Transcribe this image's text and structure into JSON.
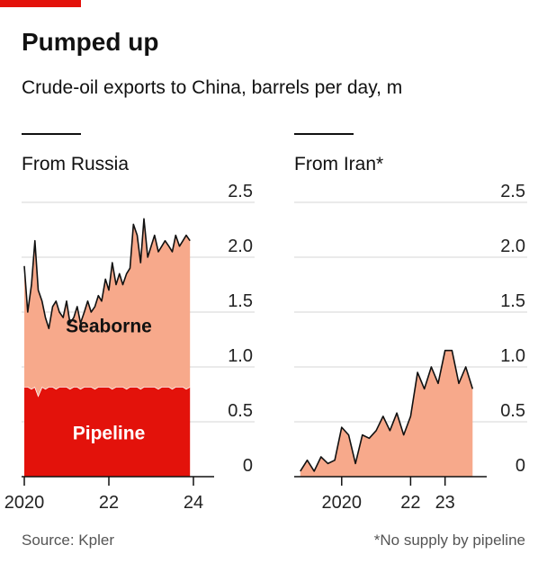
{
  "title": "Pumped up",
  "subtitle": "Crude-oil exports to China, barrels per day, m",
  "source": "Source: Kpler",
  "footnote": "*No supply by pipeline",
  "chart_data": [
    {
      "type": "stacked_area",
      "title": "From Russia",
      "x": [
        2020,
        2020.08,
        2020.17,
        2020.25,
        2020.33,
        2020.42,
        2020.5,
        2020.58,
        2020.67,
        2020.75,
        2020.83,
        2020.92,
        2021,
        2021.08,
        2021.17,
        2021.25,
        2021.33,
        2021.42,
        2021.5,
        2021.58,
        2021.67,
        2021.75,
        2021.83,
        2021.92,
        2022,
        2022.08,
        2022.17,
        2022.25,
        2022.33,
        2022.42,
        2022.5,
        2022.58,
        2022.67,
        2022.75,
        2022.83,
        2022.92,
        2023,
        2023.08,
        2023.17,
        2023.25,
        2023.33,
        2023.42,
        2023.5,
        2023.58,
        2023.67,
        2023.75,
        2023.83,
        2023.92
      ],
      "series": [
        {
          "name": "Pipeline",
          "color": "#e3120b",
          "values": [
            0.82,
            0.82,
            0.8,
            0.82,
            0.74,
            0.82,
            0.8,
            0.82,
            0.82,
            0.8,
            0.82,
            0.82,
            0.82,
            0.8,
            0.82,
            0.82,
            0.8,
            0.82,
            0.82,
            0.82,
            0.8,
            0.82,
            0.82,
            0.82,
            0.82,
            0.8,
            0.82,
            0.82,
            0.82,
            0.8,
            0.82,
            0.82,
            0.82,
            0.8,
            0.82,
            0.82,
            0.82,
            0.82,
            0.8,
            0.82,
            0.82,
            0.82,
            0.8,
            0.82,
            0.82,
            0.82,
            0.8,
            0.82
          ]
        },
        {
          "name": "Seaborne",
          "color": "#f7a98b",
          "values": [
            1.1,
            0.68,
            0.95,
            1.33,
            0.96,
            0.78,
            0.65,
            0.53,
            0.73,
            0.8,
            0.68,
            0.63,
            0.78,
            0.6,
            0.63,
            0.73,
            0.6,
            0.68,
            0.78,
            0.68,
            0.75,
            0.83,
            0.78,
            0.98,
            0.88,
            1.15,
            0.93,
            1.03,
            0.93,
            1.05,
            1.08,
            1.48,
            1.38,
            1.15,
            1.53,
            1.18,
            1.28,
            1.38,
            1.25,
            1.28,
            1.33,
            1.28,
            1.25,
            1.38,
            1.28,
            1.33,
            1.4,
            1.33
          ]
        }
      ],
      "xlim": [
        2020,
        2024
      ],
      "xticks": [
        {
          "value": 2020,
          "label": "2020"
        },
        {
          "value": 2022,
          "label": "22"
        },
        {
          "value": 2024,
          "label": "24"
        }
      ],
      "ylim": [
        0,
        2.5
      ],
      "yticks": [
        0,
        0.5,
        {
          "value": 1,
          "label": "1.0"
        },
        1.5,
        {
          "value": 2,
          "label": "2.0"
        },
        2.5
      ],
      "grid": true
    },
    {
      "type": "area",
      "title": "From Iran*",
      "x": [
        2018.8,
        2019,
        2019.2,
        2019.4,
        2019.6,
        2019.8,
        2020,
        2020.2,
        2020.4,
        2020.6,
        2020.8,
        2021,
        2021.2,
        2021.4,
        2021.6,
        2021.8,
        2022,
        2022.2,
        2022.4,
        2022.6,
        2022.8,
        2023,
        2023.2,
        2023.4,
        2023.6,
        2023.8
      ],
      "series": [
        {
          "name": "Seaborne",
          "color": "#f7a98b",
          "values": [
            0.05,
            0.15,
            0.05,
            0.18,
            0.12,
            0.15,
            0.45,
            0.38,
            0.12,
            0.38,
            0.35,
            0.42,
            0.55,
            0.42,
            0.58,
            0.38,
            0.55,
            0.95,
            0.8,
            1.0,
            0.85,
            1.15,
            1.15,
            0.85,
            1.0,
            0.8
          ]
        }
      ],
      "xlim": [
        2018.7,
        2024
      ],
      "xticks": [
        {
          "value": 2020,
          "label": "2020"
        },
        {
          "value": 2022,
          "label": "22"
        },
        {
          "value": 2023,
          "label": "23"
        }
      ],
      "ylim": [
        0,
        2.5
      ],
      "yticks": [
        0,
        0.5,
        {
          "value": 1,
          "label": "1.0"
        },
        1.5,
        {
          "value": 2,
          "label": "2.0"
        },
        2.5
      ],
      "grid": true
    }
  ]
}
